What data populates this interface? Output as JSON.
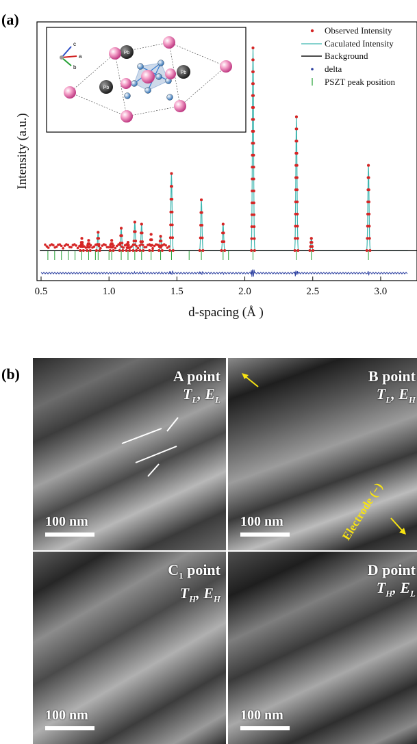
{
  "panel_a": {
    "label": "(a)"
  },
  "panel_b": {
    "label": "(b)"
  },
  "chart_data": {
    "type": "scatter",
    "xlabel": "d-spacing (Å )",
    "ylabel": "Intensity (a.u.)",
    "xlim": [
      0.5,
      3.2
    ],
    "x_ticks": [
      "0.5",
      "1.0",
      "1.5",
      "2.0",
      "2.5",
      "3.0"
    ],
    "legend": [
      "Observed Intensity",
      "Caculated Intensity",
      "Background",
      "delta",
      "PSZT peak position"
    ],
    "legend_position": "top-right",
    "series": [
      {
        "name": "Observed Intensity",
        "x": [
          2.06,
          2.38,
          2.91,
          1.46,
          1.68,
          1.84,
          1.19,
          1.24,
          1.09,
          0.92,
          1.38,
          2.49,
          1.31,
          0.8,
          0.85,
          1.02,
          1.14
        ],
        "y": [
          100,
          66,
          42,
          38,
          25,
          13,
          14,
          13,
          11,
          9,
          7,
          6,
          8,
          6,
          5,
          5,
          4
        ]
      },
      {
        "name": "Caculated Intensity",
        "x": [
          2.06,
          2.38,
          2.91,
          1.46,
          1.68,
          1.84,
          1.19,
          1.24,
          1.09,
          0.92,
          1.38,
          2.49
        ],
        "y": [
          100,
          66,
          42,
          38,
          25,
          13,
          14,
          13,
          11,
          9,
          7,
          6
        ]
      },
      {
        "name": "PSZT peak position",
        "x": [
          0.55,
          0.6,
          0.65,
          0.7,
          0.75,
          0.8,
          0.85,
          0.9,
          0.92,
          1.0,
          1.02,
          1.09,
          1.14,
          1.19,
          1.24,
          1.31,
          1.38,
          1.46,
          1.59,
          1.68,
          1.84,
          1.88,
          2.06,
          2.38,
          2.49,
          2.91
        ]
      }
    ]
  },
  "inset": {
    "axis_labels": [
      "c",
      "a",
      "b"
    ],
    "atoms": [
      "Pb",
      "Pb",
      "Pb"
    ]
  },
  "micrographs": [
    {
      "point": "A point",
      "cond_t": "T",
      "t_sub": "L",
      "cond_e": "E",
      "e_sub": "L",
      "scale": "100 nm"
    },
    {
      "point": "B point",
      "cond_t": "T",
      "t_sub": "L",
      "cond_e": "E",
      "e_sub": "H",
      "scale": "100 nm",
      "annotation": "Electrode (−)"
    },
    {
      "point": "C",
      "point_sub": "1",
      "point_rest": " point",
      "cond_t": "T",
      "t_sub": "H",
      "cond_e": "E",
      "e_sub": "H",
      "scale": "100 nm"
    },
    {
      "point": "D point",
      "cond_t": "T",
      "t_sub": "H",
      "cond_e": "E",
      "e_sub": "L",
      "scale": "100 nm"
    }
  ]
}
